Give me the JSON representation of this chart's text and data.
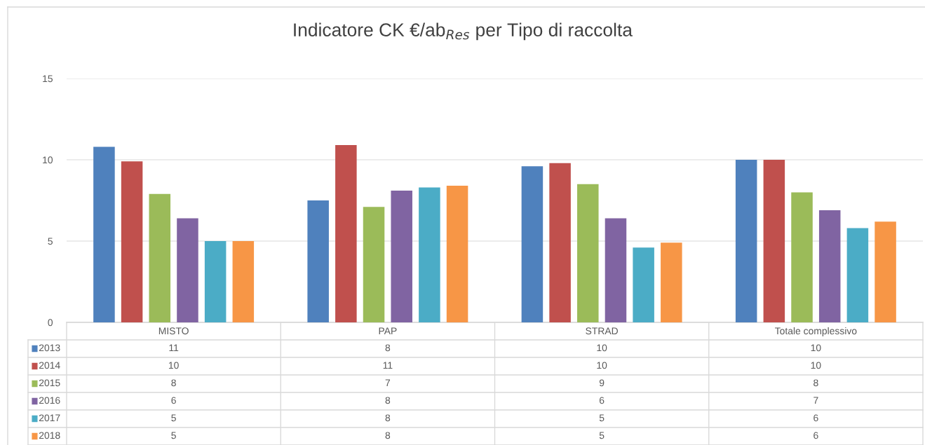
{
  "chart_data": {
    "type": "bar",
    "title": "Indicatore CK €/ab$_{Res}$ per Tipo di raccolta",
    "categories": [
      "MISTO",
      "PAP",
      "STRAD",
      "Totale complessivo"
    ],
    "ylim": [
      0,
      15
    ],
    "yticks": [
      0,
      5,
      10,
      15
    ],
    "grid": "y",
    "legend": "bottom",
    "series": [
      {
        "name": "2013",
        "color": "#4f81bd",
        "values": [
          10.8,
          7.5,
          9.6,
          10.0
        ],
        "value_labels": [
          "11",
          "8",
          "10",
          "10"
        ]
      },
      {
        "name": "2014",
        "color": "#c0504d",
        "values": [
          9.9,
          10.9,
          9.8,
          10.0
        ],
        "value_labels": [
          "10",
          "11",
          "10",
          "10"
        ]
      },
      {
        "name": "2015",
        "color": "#9bbb59",
        "values": [
          7.9,
          7.1,
          8.5,
          8.0
        ],
        "value_labels": [
          "8",
          "7",
          "9",
          "8"
        ]
      },
      {
        "name": "2016",
        "color": "#8064a2",
        "values": [
          6.4,
          8.1,
          6.4,
          6.9
        ],
        "value_labels": [
          "6",
          "8",
          "6",
          "7"
        ]
      },
      {
        "name": "2017",
        "color": "#4bacc6",
        "values": [
          5.0,
          8.3,
          4.6,
          5.8
        ],
        "value_labels": [
          "5",
          "8",
          "5",
          "6"
        ]
      },
      {
        "name": "2018",
        "color": "#f79646",
        "values": [
          5.0,
          8.4,
          4.9,
          6.2
        ],
        "value_labels": [
          "5",
          "8",
          "5",
          "6"
        ]
      }
    ]
  }
}
